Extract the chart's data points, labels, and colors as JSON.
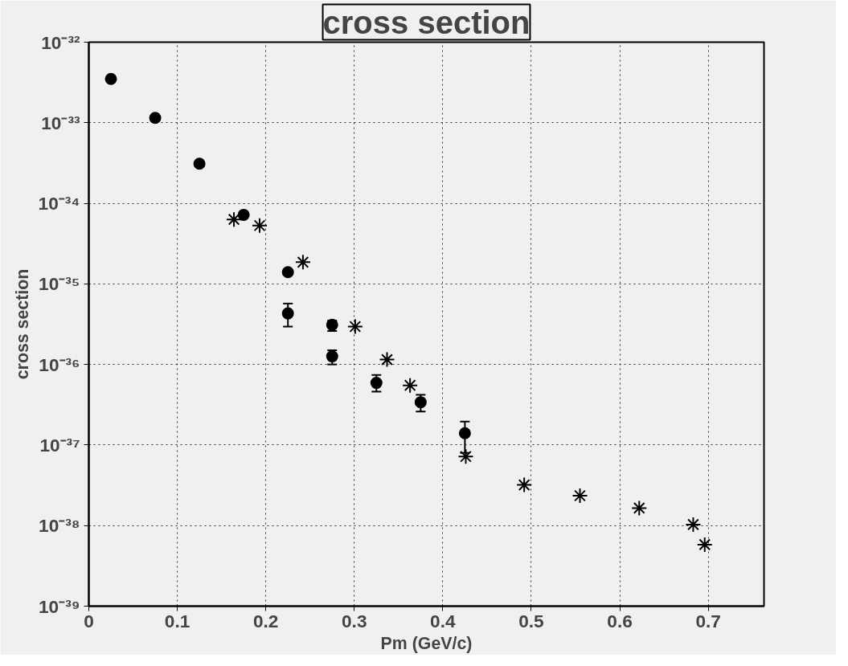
{
  "chart_data": {
    "type": "scatter",
    "title": "cross section",
    "xlabel": "Pm (GeV/c)",
    "ylabel": "cross section",
    "log": "y",
    "grid": true,
    "xlim": [
      0,
      0.763
    ],
    "xticks": [
      0,
      0.1,
      0.2,
      0.3,
      0.4,
      0.5,
      0.6,
      0.7
    ],
    "ylim": [
      1e-39,
      1e-32
    ],
    "yticks": [
      {
        "value": 1e-39,
        "label": "10⁻³⁹"
      },
      {
        "value": 1e-38,
        "label": "10⁻³⁸"
      },
      {
        "value": 1e-37,
        "label": "10⁻³⁷"
      },
      {
        "value": 1e-36,
        "label": "10⁻³⁶"
      },
      {
        "value": 1e-35,
        "label": "10⁻³⁵"
      },
      {
        "value": 1e-34,
        "label": "10⁻³⁴"
      },
      {
        "value": 1e-33,
        "label": "10⁻³³"
      },
      {
        "value": 1e-32,
        "label": "10⁻³²"
      }
    ],
    "series": [
      {
        "color": "#000000",
        "marker": "circle",
        "x": [
          0.025,
          0.075,
          0.125,
          0.175,
          0.225,
          0.275
        ],
        "values": [
          3.5e-33,
          1.15e-33,
          3.1e-34,
          7.2e-35,
          1.4e-35,
          3.1e-36
        ],
        "errors": [
          null,
          null,
          null,
          null,
          null,
          [
            2.6e-36,
            3.5e-36
          ]
        ]
      },
      {
        "color": "#000000",
        "marker": "circle",
        "x": [
          0.225,
          0.275,
          0.325,
          0.375,
          0.425
        ],
        "values": [
          4.3e-36,
          1.26e-36,
          5.9e-37,
          3.4e-37,
          1.4e-37
        ],
        "errors": [
          [
            2.95e-36,
            5.7e-36
          ],
          [
            1e-36,
            1.5e-36
          ],
          [
            4.6e-37,
            7.4e-37
          ],
          [
            2.6e-37,
            4.2e-37
          ],
          [
            8e-38,
            1.95e-37
          ]
        ]
      },
      {
        "color": "#000000",
        "marker": "cross",
        "x": [
          0.164,
          0.193,
          0.242,
          0.301,
          0.337,
          0.363,
          0.426,
          0.492,
          0.555,
          0.622,
          0.683,
          0.696
        ],
        "values": [
          6.3e-35,
          5.3e-35,
          1.86e-35,
          2.95e-36,
          1.15e-36,
          5.5e-37,
          7.2e-38,
          3.2e-38,
          2.35e-38,
          1.65e-38,
          1.03e-38,
          5.8e-39
        ]
      }
    ]
  }
}
